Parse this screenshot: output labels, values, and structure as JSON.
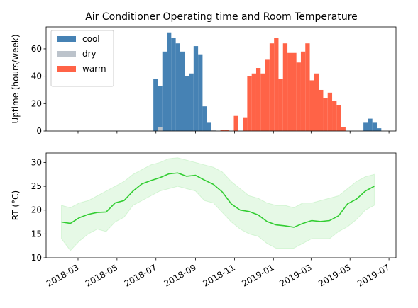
{
  "chart_data": [
    {
      "type": "bar",
      "title": "Air Conditioner Operating time and Room Temperature",
      "ylabel": "Uptime (hours/week)",
      "x": [
        "2018-06-27",
        "2018-07-04",
        "2018-07-11",
        "2018-07-18",
        "2018-07-25",
        "2018-08-01",
        "2018-08-08",
        "2018-08-15",
        "2018-08-22",
        "2018-08-29",
        "2018-09-05",
        "2018-09-12",
        "2018-09-19",
        "2018-09-26",
        "2018-10-03",
        "2018-10-10",
        "2018-10-17",
        "2018-10-24",
        "2018-10-31",
        "2018-11-07",
        "2018-11-14",
        "2018-11-21",
        "2018-11-28",
        "2018-12-05",
        "2018-12-12",
        "2018-12-19",
        "2018-12-26",
        "2019-01-02",
        "2019-01-09",
        "2019-01-16",
        "2019-01-23",
        "2019-01-30",
        "2019-02-06",
        "2019-02-13",
        "2019-02-20",
        "2019-02-27",
        "2019-03-06",
        "2019-03-13",
        "2019-03-20",
        "2019-03-27",
        "2019-04-03",
        "2019-04-10",
        "2019-04-17",
        "2019-04-24",
        "2019-05-01",
        "2019-05-08",
        "2019-05-15",
        "2019-05-22",
        "2019-05-29",
        "2019-06-05",
        "2019-06-12"
      ],
      "series": [
        {
          "name": "cool",
          "color": "#4682b4",
          "values": [
            38,
            33,
            58,
            72,
            68,
            64,
            58,
            40,
            42,
            62,
            56,
            18,
            6,
            0,
            0,
            0,
            0,
            0,
            0,
            0,
            0,
            0,
            0,
            0,
            0,
            0,
            0,
            0,
            0,
            0,
            0,
            0,
            0,
            0,
            0,
            0,
            0,
            0,
            0,
            0,
            0,
            0,
            0,
            0,
            0,
            0,
            0,
            6,
            9,
            6,
            2
          ]
        },
        {
          "name": "dry",
          "color": "#bcc3cb",
          "values": [
            0,
            3,
            0,
            0,
            0,
            0,
            0,
            0,
            0,
            0,
            0,
            0,
            0,
            1,
            0,
            0,
            0,
            0,
            0,
            0,
            0,
            0,
            0,
            0,
            0,
            0,
            0,
            0,
            0,
            0,
            0,
            0,
            0,
            0,
            0,
            0,
            0,
            0,
            0,
            0,
            0,
            0,
            0,
            0,
            0,
            0,
            0,
            0,
            0,
            0,
            0
          ]
        },
        {
          "name": "warm",
          "color": "#ff6347",
          "values": [
            0,
            0,
            0,
            0,
            0,
            0,
            0,
            0,
            0,
            0,
            0,
            0,
            0,
            0,
            0,
            1,
            1,
            0,
            11,
            0,
            10,
            40,
            42,
            46,
            42,
            52,
            64,
            68,
            38,
            64,
            57,
            57,
            50,
            58,
            64,
            37,
            42,
            30,
            24,
            28,
            22,
            19,
            3,
            0,
            0,
            0,
            0,
            0,
            0,
            0,
            0
          ]
        }
      ],
      "xlim": [
        "2018-01-10",
        "2019-07-12"
      ],
      "ylim": [
        0,
        76
      ],
      "yticks": [
        0,
        20,
        40,
        60
      ],
      "legend": "upper left"
    },
    {
      "type": "line",
      "ylabel": "RT (°C)",
      "x": [
        "2018-02-03",
        "2018-02-17",
        "2018-03-03",
        "2018-03-17",
        "2018-03-31",
        "2018-04-14",
        "2018-04-28",
        "2018-05-12",
        "2018-05-26",
        "2018-06-09",
        "2018-06-23",
        "2018-07-07",
        "2018-07-21",
        "2018-08-04",
        "2018-08-18",
        "2018-09-01",
        "2018-09-15",
        "2018-09-29",
        "2018-10-13",
        "2018-10-27",
        "2018-11-10",
        "2018-11-24",
        "2018-12-08",
        "2018-12-22",
        "2019-01-05",
        "2019-01-19",
        "2019-02-02",
        "2019-02-16",
        "2019-03-02",
        "2019-03-16",
        "2019-03-30",
        "2019-04-13",
        "2019-04-27",
        "2019-05-11",
        "2019-05-25",
        "2019-06-08"
      ],
      "series": [
        {
          "color": "#32cd32",
          "values": [
            17.5,
            17.2,
            18.4,
            19.1,
            19.5,
            19.6,
            21.5,
            22.0,
            24.0,
            25.5,
            26.2,
            26.8,
            27.6,
            27.8,
            27.1,
            27.3,
            26.3,
            25.4,
            23.8,
            21.3,
            20.0,
            19.7,
            19.0,
            17.6,
            16.9,
            16.7,
            16.4,
            17.2,
            17.8,
            17.6,
            17.8,
            18.8,
            21.3,
            22.3,
            24.0,
            25.0
          ],
          "lower": [
            14,
            11.5,
            13.5,
            15,
            16,
            15.5,
            17.5,
            18.5,
            21,
            22,
            23,
            24,
            24.5,
            25,
            24.5,
            24,
            22,
            21.5,
            19.5,
            17.5,
            16,
            15,
            14.5,
            13,
            12,
            12,
            12,
            13,
            14,
            14,
            14,
            15.5,
            16.5,
            18,
            20,
            21
          ],
          "upper": [
            21,
            20.5,
            21.5,
            22,
            23,
            24,
            25,
            26,
            27.5,
            28.5,
            29.5,
            30,
            30.8,
            31,
            30.5,
            30,
            29.5,
            29,
            28,
            26,
            24.5,
            23,
            22.5,
            21.5,
            21,
            21,
            20.5,
            21.5,
            21.5,
            22,
            22.5,
            23,
            24.5,
            26,
            27,
            27.5
          ]
        }
      ],
      "xlim": [
        "2018-01-10",
        "2019-07-12"
      ],
      "ylim": [
        10,
        32
      ],
      "yticks": [
        10,
        15,
        20,
        25,
        30
      ],
      "xticks": [
        {
          "value": "2018-03-01",
          "label": "2018-03"
        },
        {
          "value": "2018-05-01",
          "label": "2018-05"
        },
        {
          "value": "2018-07-01",
          "label": "2018-07"
        },
        {
          "value": "2018-09-01",
          "label": "2018-09"
        },
        {
          "value": "2018-11-01",
          "label": "2018-11"
        },
        {
          "value": "2019-01-01",
          "label": "2019-01"
        },
        {
          "value": "2019-03-01",
          "label": "2019-03"
        },
        {
          "value": "2019-05-01",
          "label": "2019-05"
        },
        {
          "value": "2019-07-01",
          "label": "2019-07"
        }
      ]
    }
  ]
}
